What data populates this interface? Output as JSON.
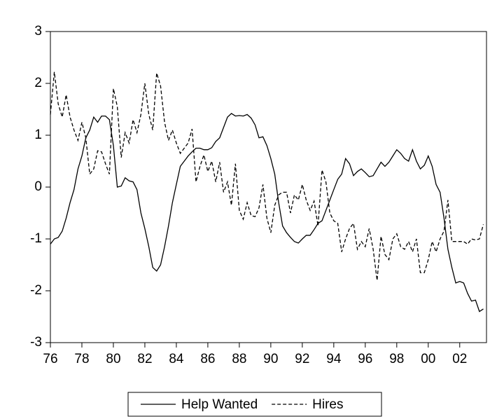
{
  "chart_data": {
    "type": "line",
    "x": [
      1976,
      1976.25,
      1976.5,
      1976.75,
      1977,
      1977.25,
      1977.5,
      1977.75,
      1978,
      1978.25,
      1978.5,
      1978.75,
      1979,
      1979.25,
      1979.5,
      1979.75,
      1980,
      1980.25,
      1980.5,
      1980.75,
      1981,
      1981.25,
      1981.5,
      1981.75,
      1982,
      1982.25,
      1982.5,
      1982.75,
      1983,
      1983.25,
      1983.5,
      1983.75,
      1984,
      1984.25,
      1984.5,
      1984.75,
      1985,
      1985.25,
      1985.5,
      1985.75,
      1986,
      1986.25,
      1986.5,
      1986.75,
      1987,
      1987.25,
      1987.5,
      1987.75,
      1988,
      1988.25,
      1988.5,
      1988.75,
      1989,
      1989.25,
      1989.5,
      1989.75,
      1990,
      1990.25,
      1990.5,
      1990.75,
      1991,
      1991.25,
      1991.5,
      1991.75,
      1992,
      1992.25,
      1992.5,
      1992.75,
      1993,
      1993.25,
      1993.5,
      1993.75,
      1994,
      1994.25,
      1994.5,
      1994.75,
      1995,
      1995.25,
      1995.5,
      1995.75,
      1996,
      1996.25,
      1996.5,
      1996.75,
      1997,
      1997.25,
      1997.5,
      1997.75,
      1998,
      1998.25,
      1998.5,
      1998.75,
      1999,
      1999.25,
      1999.5,
      1999.75,
      2000,
      2000.25,
      2000.5,
      2000.75,
      2001,
      2001.25,
      2001.5,
      2001.75,
      2002,
      2002.25,
      2002.5,
      2002.75,
      2003,
      2003.25,
      2003.5
    ],
    "series": [
      {
        "name": "Help Wanted",
        "color": "#000000",
        "dash": "solid",
        "values": [
          -1.1,
          -1.0,
          -0.97,
          -0.85,
          -0.6,
          -0.3,
          -0.05,
          0.35,
          0.6,
          0.95,
          1.1,
          1.35,
          1.25,
          1.37,
          1.37,
          1.3,
          0.8,
          0.0,
          0.02,
          0.18,
          0.12,
          0.1,
          -0.05,
          -0.5,
          -0.8,
          -1.15,
          -1.55,
          -1.62,
          -1.5,
          -1.15,
          -0.75,
          -0.3,
          0.05,
          0.4,
          0.5,
          0.6,
          0.68,
          0.75,
          0.75,
          0.72,
          0.72,
          0.76,
          0.88,
          0.95,
          1.15,
          1.35,
          1.42,
          1.37,
          1.38,
          1.37,
          1.4,
          1.33,
          1.2,
          0.95,
          0.97,
          0.8,
          0.55,
          0.25,
          -0.3,
          -0.75,
          -0.88,
          -0.97,
          -1.05,
          -1.08,
          -1.0,
          -0.93,
          -0.93,
          -0.82,
          -0.7,
          -0.65,
          -0.45,
          -0.25,
          -0.05,
          0.15,
          0.25,
          0.55,
          0.45,
          0.22,
          0.3,
          0.35,
          0.28,
          0.2,
          0.22,
          0.35,
          0.48,
          0.4,
          0.48,
          0.6,
          0.72,
          0.65,
          0.55,
          0.5,
          0.72,
          0.5,
          0.35,
          0.42,
          0.6,
          0.4,
          0.05,
          -0.1,
          -0.6,
          -1.2,
          -1.55,
          -1.85,
          -1.82,
          -1.85,
          -2.05,
          -2.2,
          -2.18,
          -2.4,
          -2.35
        ]
      },
      {
        "name": "Hires",
        "color": "#000000",
        "dash": "dashed",
        "values": [
          1.4,
          2.22,
          1.6,
          1.35,
          1.78,
          1.35,
          1.1,
          0.9,
          1.25,
          0.95,
          0.25,
          0.35,
          0.7,
          0.68,
          0.45,
          0.25,
          1.9,
          1.55,
          0.57,
          1.05,
          0.85,
          1.3,
          1.05,
          1.4,
          2.0,
          1.4,
          1.1,
          2.2,
          1.95,
          1.25,
          0.9,
          1.1,
          0.85,
          0.65,
          0.75,
          0.85,
          1.12,
          0.1,
          0.4,
          0.62,
          0.3,
          0.5,
          0.1,
          0.48,
          -0.1,
          0.1,
          -0.35,
          0.45,
          -0.45,
          -0.62,
          -0.3,
          -0.55,
          -0.57,
          -0.4,
          0.05,
          -0.6,
          -0.88,
          -0.35,
          -0.15,
          -0.1,
          -0.1,
          -0.5,
          -0.15,
          -0.25,
          0.05,
          -0.25,
          -0.45,
          -0.27,
          -0.75,
          0.33,
          0.1,
          -0.5,
          -0.65,
          -0.7,
          -1.25,
          -1.0,
          -0.8,
          -0.7,
          -1.2,
          -1.05,
          -1.15,
          -0.8,
          -1.2,
          -1.8,
          -0.95,
          -1.3,
          -1.4,
          -1.0,
          -0.9,
          -1.15,
          -1.2,
          -1.05,
          -1.25,
          -1.0,
          -1.65,
          -1.65,
          -1.4,
          -1.05,
          -1.25,
          -1.0,
          -0.85,
          -0.25,
          -1.05,
          -1.05,
          -1.05,
          -1.05,
          -1.1,
          -1.0,
          -1.02,
          -1.0,
          -0.72
        ]
      }
    ],
    "xlim": [
      1976,
      2003.7
    ],
    "ylim": [
      -3,
      3
    ],
    "yticks": [
      -3,
      -2,
      -1,
      0,
      1,
      2,
      3
    ],
    "xticks": [
      {
        "value": 1976,
        "label": "76"
      },
      {
        "value": 1978,
        "label": "78"
      },
      {
        "value": 1980,
        "label": "80"
      },
      {
        "value": 1982,
        "label": "82"
      },
      {
        "value": 1984,
        "label": "84"
      },
      {
        "value": 1986,
        "label": "86"
      },
      {
        "value": 1988,
        "label": "88"
      },
      {
        "value": 1990,
        "label": "90"
      },
      {
        "value": 1992,
        "label": "92"
      },
      {
        "value": 1994,
        "label": "94"
      },
      {
        "value": 1996,
        "label": "96"
      },
      {
        "value": 1998,
        "label": "98"
      },
      {
        "value": 2000,
        "label": "00"
      },
      {
        "value": 2002,
        "label": "02"
      }
    ],
    "legend": "bottom"
  }
}
